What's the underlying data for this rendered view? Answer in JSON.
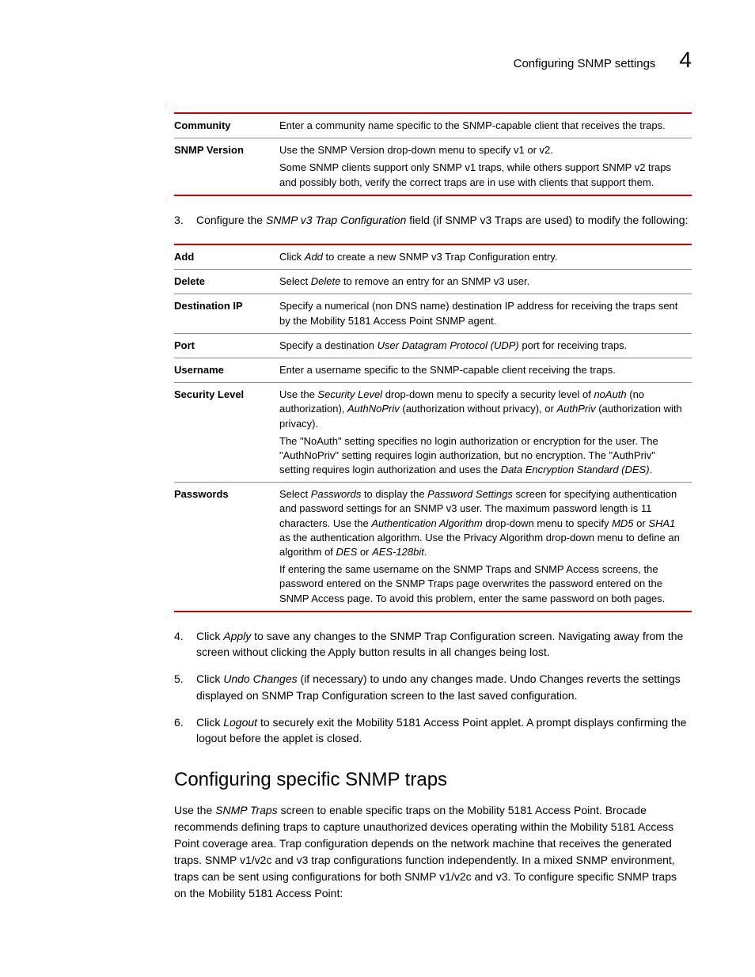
{
  "header": {
    "title": "Configuring SNMP settings",
    "chapter": "4"
  },
  "table1": {
    "rows": [
      {
        "label": "Community",
        "paras": [
          [
            {
              "t": "Enter a community name specific to the SNMP-capable client that receives the traps."
            }
          ]
        ]
      },
      {
        "label": "SNMP Version",
        "paras": [
          [
            {
              "t": "Use the SNMP Version drop-down menu to specify v1 or v2."
            }
          ],
          [
            {
              "t": "Some SNMP clients support only SNMP v1 traps, while others support SNMP v2 traps and possibly both, verify the correct traps are in use with clients that support them."
            }
          ]
        ]
      }
    ]
  },
  "step3": {
    "num": "3.",
    "parts": [
      {
        "t": "Configure the "
      },
      {
        "t": "SNMP v3 Trap Configuration",
        "i": true
      },
      {
        "t": " field (if SNMP v3 Traps are used) to modify the following:"
      }
    ]
  },
  "table2": {
    "rows": [
      {
        "label": "Add",
        "paras": [
          [
            {
              "t": "Click "
            },
            {
              "t": "Add",
              "i": true
            },
            {
              "t": " to create a new SNMP v3 Trap Configuration entry."
            }
          ]
        ]
      },
      {
        "label": "Delete",
        "paras": [
          [
            {
              "t": "Select "
            },
            {
              "t": "Delete",
              "i": true
            },
            {
              "t": " to remove an entry for an SNMP v3 user."
            }
          ]
        ]
      },
      {
        "label": "Destination IP",
        "paras": [
          [
            {
              "t": "Specify a numerical (non DNS name) destination IP address for receiving the traps sent by the Mobility 5181 Access Point SNMP agent."
            }
          ]
        ]
      },
      {
        "label": "Port",
        "paras": [
          [
            {
              "t": "Specify a destination "
            },
            {
              "t": "User Datagram Protocol (UDP)",
              "i": true
            },
            {
              "t": " port for receiving traps."
            }
          ]
        ]
      },
      {
        "label": "Username",
        "paras": [
          [
            {
              "t": "Enter a username specific to the SNMP-capable client receiving the traps."
            }
          ]
        ]
      },
      {
        "label": "Security Level",
        "paras": [
          [
            {
              "t": "Use the "
            },
            {
              "t": "Security Level",
              "i": true
            },
            {
              "t": " drop-down menu to specify a security level of "
            },
            {
              "t": "noAuth",
              "i": true
            },
            {
              "t": " (no authorization), "
            },
            {
              "t": "AuthNoPriv",
              "i": true
            },
            {
              "t": " (authorization without privacy), or "
            },
            {
              "t": "AuthPriv",
              "i": true
            },
            {
              "t": " (authorization with privacy)."
            }
          ],
          [
            {
              "t": "The \"NoAuth\" setting specifies no login authorization or encryption for the user. The \"AuthNoPriv\" setting requires login authorization, but no encryption. The \"AuthPriv\" setting requires login authorization and uses the "
            },
            {
              "t": "Data Encryption Standard (DES)",
              "i": true
            },
            {
              "t": "."
            }
          ]
        ]
      },
      {
        "label": "Passwords",
        "paras": [
          [
            {
              "t": "Select "
            },
            {
              "t": "Passwords",
              "i": true
            },
            {
              "t": " to display the "
            },
            {
              "t": "Password Settings",
              "i": true
            },
            {
              "t": " screen for specifying authentication and password settings for an SNMP v3 user. The maximum password length is 11 characters. Use the "
            },
            {
              "t": "Authentication Algorithm",
              "i": true
            },
            {
              "t": " drop-down menu to specify "
            },
            {
              "t": "MD5",
              "i": true
            },
            {
              "t": " or "
            },
            {
              "t": "SHA1",
              "i": true
            },
            {
              "t": " as the authentication algorithm. Use the Privacy Algorithm drop-down menu to define an algorithm of "
            },
            {
              "t": "DES",
              "i": true
            },
            {
              "t": " or "
            },
            {
              "t": "AES-128bit",
              "i": true
            },
            {
              "t": "."
            }
          ],
          [
            {
              "t": "If entering the same username on the SNMP Traps and SNMP Access screens, the password entered on the SNMP Traps page overwrites the password entered on the SNMP Access page. To avoid this problem, enter the same password on both pages."
            }
          ]
        ]
      }
    ]
  },
  "steps456": [
    {
      "num": "4.",
      "parts": [
        {
          "t": "Click "
        },
        {
          "t": "Apply",
          "i": true
        },
        {
          "t": " to save any changes to the SNMP Trap Configuration screen. Navigating away from the screen without clicking the Apply button results in all changes being lost."
        }
      ]
    },
    {
      "num": "5.",
      "parts": [
        {
          "t": "Click "
        },
        {
          "t": "Undo Changes",
          "i": true
        },
        {
          "t": " (if necessary) to undo any changes made. Undo Changes reverts the settings displayed on SNMP Trap Configuration screen to the last saved configuration."
        }
      ]
    },
    {
      "num": "6.",
      "parts": [
        {
          "t": "Click "
        },
        {
          "t": "Logout",
          "i": true
        },
        {
          "t": " to securely exit the Mobility 5181 Access Point applet. A prompt displays confirming the logout before the applet is closed."
        }
      ]
    }
  ],
  "section2": {
    "heading": "Configuring specific SNMP traps",
    "body_parts": [
      {
        "t": "Use the "
      },
      {
        "t": "SNMP Traps",
        "i": true
      },
      {
        "t": " screen to enable specific traps on the Mobility 5181 Access Point. Brocade recommends defining traps to capture unauthorized devices operating within the Mobility 5181 Access Point coverage area. Trap configuration depends on the network machine that receives the generated traps. SNMP v1/v2c and v3 trap configurations function independently. In a mixed SNMP environment, traps can be sent using configurations for both SNMP v1/v2c and v3. To configure specific SNMP traps on the Mobility 5181 Access Point:"
      }
    ]
  }
}
